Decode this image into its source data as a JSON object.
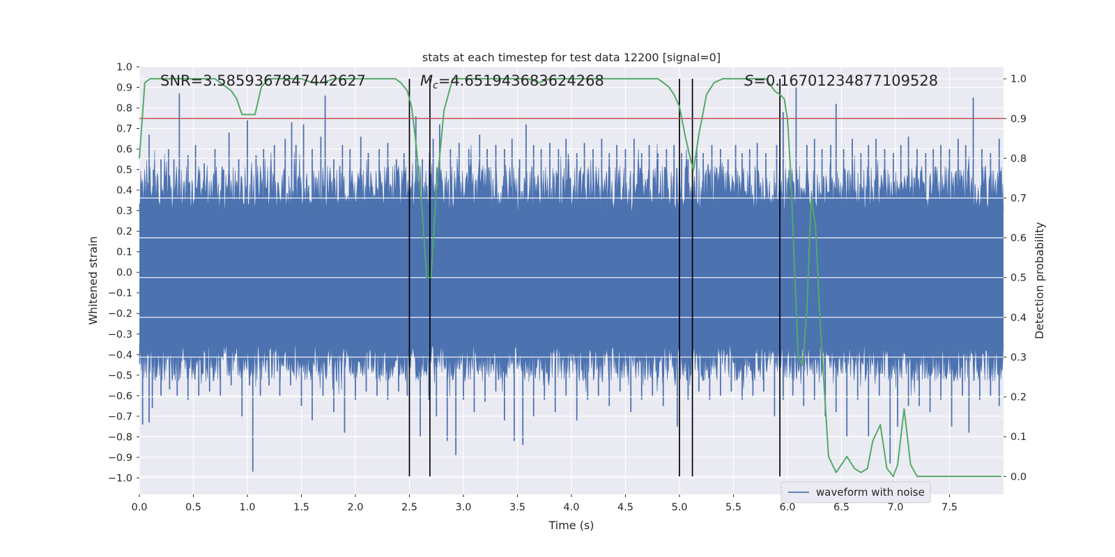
{
  "chart_data": {
    "type": "line",
    "title": "stats at each timestep for test data 12200 [signal=0]",
    "xlabel": "Time (s)",
    "ylabel": "Whitened strain",
    "y2label": "Detection probability",
    "xlim": [
      0.0,
      8.0
    ],
    "ylim": [
      -1.08,
      1.0
    ],
    "y2lim": [
      -0.045,
      1.03
    ],
    "xticks": [
      "0.0",
      "0.5",
      "1.0",
      "1.5",
      "2.0",
      "2.5",
      "3.0",
      "3.5",
      "4.0",
      "4.5",
      "5.0",
      "5.5",
      "6.0",
      "6.5",
      "7.0",
      "7.5"
    ],
    "yticks": [
      "1.0",
      "0.9",
      "0.8",
      "0.7",
      "0.6",
      "0.5",
      "0.4",
      "0.3",
      "0.2",
      "0.1",
      "0.0",
      "−0.1",
      "−0.2",
      "−0.3",
      "−0.4",
      "−0.5",
      "−0.6",
      "−0.7",
      "−0.8",
      "−0.9",
      "−1.0"
    ],
    "y2ticks": [
      "1.0",
      "0.9",
      "0.8",
      "0.7",
      "0.6",
      "0.5",
      "0.4",
      "0.3",
      "0.2",
      "0.1",
      "0.0"
    ],
    "annotations": {
      "snr": "SNR=3.5859367847442627",
      "mc_symbol": "M",
      "mc_subscript": "c",
      "mc_value": "=4.651943683624268",
      "s_symbol": "S",
      "s_value": "=0.16701234877109528"
    },
    "legend": {
      "label": "waveform with noise",
      "position": "lower-right"
    },
    "threshold": {
      "value": 0.9,
      "axis": "y2",
      "color": "#c44e52"
    },
    "event_markers": [
      2.5,
      2.69,
      5.0,
      5.12,
      5.93
    ],
    "waveform": {
      "name": "waveform with noise",
      "color": "#4c72b0",
      "baseline_upper": 0.3,
      "baseline_lower": -0.35,
      "peaks_up": [
        [
          0.02,
          0.35
        ],
        [
          0.05,
          0.45
        ],
        [
          0.09,
          0.67
        ],
        [
          0.13,
          0.5
        ],
        [
          0.2,
          0.55
        ],
        [
          0.27,
          0.6
        ],
        [
          0.32,
          0.55
        ],
        [
          0.37,
          0.87
        ],
        [
          0.45,
          0.57
        ],
        [
          0.52,
          0.62
        ],
        [
          0.6,
          0.53
        ],
        [
          0.7,
          0.6
        ],
        [
          0.78,
          0.5
        ],
        [
          0.83,
          0.68
        ],
        [
          0.92,
          0.55
        ],
        [
          1.0,
          0.74
        ],
        [
          1.08,
          0.57
        ],
        [
          1.15,
          0.6
        ],
        [
          1.25,
          0.62
        ],
        [
          1.35,
          0.65
        ],
        [
          1.41,
          0.73
        ],
        [
          1.45,
          0.62
        ],
        [
          1.52,
          0.72
        ],
        [
          1.6,
          0.6
        ],
        [
          1.68,
          0.66
        ],
        [
          1.72,
          0.86
        ],
        [
          1.8,
          0.55
        ],
        [
          1.88,
          0.62
        ],
        [
          1.95,
          0.6
        ],
        [
          2.05,
          0.66
        ],
        [
          2.12,
          0.58
        ],
        [
          2.22,
          0.6
        ],
        [
          2.3,
          0.63
        ],
        [
          2.38,
          0.55
        ],
        [
          2.45,
          0.58
        ],
        [
          2.56,
          0.76
        ],
        [
          2.62,
          0.55
        ],
        [
          2.72,
          0.65
        ],
        [
          2.78,
          0.72
        ],
        [
          2.88,
          0.6
        ],
        [
          2.96,
          0.63
        ],
        [
          3.05,
          0.6
        ],
        [
          3.15,
          0.67
        ],
        [
          3.22,
          0.6
        ],
        [
          3.3,
          0.62
        ],
        [
          3.38,
          0.6
        ],
        [
          3.45,
          0.65
        ],
        [
          3.52,
          0.55
        ],
        [
          3.58,
          0.72
        ],
        [
          3.65,
          0.62
        ],
        [
          3.72,
          0.6
        ],
        [
          3.8,
          0.63
        ],
        [
          3.88,
          0.6
        ],
        [
          3.95,
          0.65
        ],
        [
          4.05,
          0.58
        ],
        [
          4.12,
          0.63
        ],
        [
          4.2,
          0.6
        ],
        [
          4.28,
          0.65
        ],
        [
          4.35,
          0.58
        ],
        [
          4.42,
          0.62
        ],
        [
          4.5,
          0.6
        ],
        [
          4.58,
          0.65
        ],
        [
          4.65,
          0.58
        ],
        [
          4.72,
          0.62
        ],
        [
          4.8,
          0.58
        ],
        [
          4.88,
          0.6
        ],
        [
          4.95,
          0.62
        ],
        [
          5.02,
          0.58
        ],
        [
          5.08,
          0.55
        ],
        [
          5.16,
          0.6
        ],
        [
          5.22,
          0.58
        ],
        [
          5.3,
          0.62
        ],
        [
          5.38,
          0.6
        ],
        [
          5.45,
          0.55
        ],
        [
          5.52,
          0.62
        ],
        [
          5.58,
          0.58
        ],
        [
          5.65,
          0.6
        ],
        [
          5.72,
          0.63
        ],
        [
          5.8,
          0.58
        ],
        [
          5.9,
          0.62
        ],
        [
          5.96,
          0.78
        ],
        [
          6.08,
          0.9
        ],
        [
          6.18,
          0.62
        ],
        [
          6.25,
          0.65
        ],
        [
          6.32,
          0.6
        ],
        [
          6.4,
          0.62
        ],
        [
          6.45,
          0.82
        ],
        [
          6.52,
          0.6
        ],
        [
          6.6,
          0.65
        ],
        [
          6.68,
          0.58
        ],
        [
          6.75,
          0.62
        ],
        [
          6.82,
          0.65
        ],
        [
          6.9,
          0.6
        ],
        [
          6.98,
          0.58
        ],
        [
          7.05,
          0.62
        ],
        [
          7.12,
          0.66
        ],
        [
          7.2,
          0.6
        ],
        [
          7.28,
          0.58
        ],
        [
          7.35,
          0.6
        ],
        [
          7.42,
          0.62
        ],
        [
          7.5,
          0.6
        ],
        [
          7.58,
          0.65
        ],
        [
          7.65,
          0.62
        ],
        [
          7.72,
          0.85
        ],
        [
          7.8,
          0.6
        ],
        [
          7.88,
          0.58
        ],
        [
          7.96,
          0.65
        ]
      ],
      "peaks_down": [
        [
          0.03,
          -0.74
        ],
        [
          0.09,
          -0.73
        ],
        [
          0.12,
          -0.66
        ],
        [
          0.2,
          -0.6
        ],
        [
          0.28,
          -0.57
        ],
        [
          0.35,
          -0.6
        ],
        [
          0.45,
          -0.62
        ],
        [
          0.55,
          -0.6
        ],
        [
          0.65,
          -0.58
        ],
        [
          0.75,
          -0.6
        ],
        [
          0.85,
          -0.55
        ],
        [
          0.95,
          -0.7
        ],
        [
          1.02,
          -0.55
        ],
        [
          1.05,
          -0.97
        ],
        [
          1.12,
          -0.6
        ],
        [
          1.2,
          -0.55
        ],
        [
          1.3,
          -0.6
        ],
        [
          1.4,
          -0.55
        ],
        [
          1.5,
          -0.65
        ],
        [
          1.6,
          -0.72
        ],
        [
          1.7,
          -0.6
        ],
        [
          1.8,
          -0.68
        ],
        [
          1.9,
          -0.78
        ],
        [
          2.0,
          -0.62
        ],
        [
          2.1,
          -0.58
        ],
        [
          2.2,
          -0.6
        ],
        [
          2.3,
          -0.62
        ],
        [
          2.4,
          -0.58
        ],
        [
          2.48,
          -0.6
        ],
        [
          2.6,
          -0.8
        ],
        [
          2.68,
          -0.62
        ],
        [
          2.75,
          -0.7
        ],
        [
          2.85,
          -0.82
        ],
        [
          2.93,
          -0.89
        ],
        [
          3.0,
          -0.62
        ],
        [
          3.1,
          -0.68
        ],
        [
          3.2,
          -0.63
        ],
        [
          3.3,
          -0.58
        ],
        [
          3.38,
          -0.72
        ],
        [
          3.47,
          -0.82
        ],
        [
          3.55,
          -0.84
        ],
        [
          3.65,
          -0.7
        ],
        [
          3.75,
          -0.62
        ],
        [
          3.85,
          -0.68
        ],
        [
          3.95,
          -0.6
        ],
        [
          4.05,
          -0.72
        ],
        [
          4.15,
          -0.62
        ],
        [
          4.25,
          -0.6
        ],
        [
          4.35,
          -0.65
        ],
        [
          4.45,
          -0.58
        ],
        [
          4.55,
          -0.68
        ],
        [
          4.65,
          -0.62
        ],
        [
          4.75,
          -0.6
        ],
        [
          4.85,
          -0.65
        ],
        [
          4.98,
          -0.75
        ],
        [
          5.08,
          -0.62
        ],
        [
          5.18,
          -0.58
        ],
        [
          5.28,
          -0.62
        ],
        [
          5.38,
          -0.6
        ],
        [
          5.48,
          -0.58
        ],
        [
          5.58,
          -0.62
        ],
        [
          5.68,
          -0.6
        ],
        [
          5.78,
          -0.58
        ],
        [
          5.88,
          -0.7
        ],
        [
          5.96,
          -0.62
        ],
        [
          6.05,
          -0.6
        ],
        [
          6.15,
          -0.65
        ],
        [
          6.25,
          -0.62
        ],
        [
          6.35,
          -0.7
        ],
        [
          6.45,
          -0.68
        ],
        [
          6.55,
          -0.8
        ],
        [
          6.65,
          -0.62
        ],
        [
          6.75,
          -0.8
        ],
        [
          6.85,
          -0.6
        ],
        [
          6.95,
          -0.93
        ],
        [
          7.02,
          -0.75
        ],
        [
          7.12,
          -0.65
        ],
        [
          7.22,
          -0.65
        ],
        [
          7.32,
          -0.68
        ],
        [
          7.42,
          -0.62
        ],
        [
          7.52,
          -0.75
        ],
        [
          7.62,
          -0.6
        ],
        [
          7.68,
          -0.78
        ],
        [
          7.78,
          -0.62
        ],
        [
          7.88,
          -0.6
        ],
        [
          7.96,
          -0.65
        ]
      ]
    },
    "probability": {
      "name": "Detection probability",
      "color": "#55a868",
      "x": [
        0.0,
        0.05,
        0.1,
        0.15,
        0.2,
        0.3,
        0.4,
        0.5,
        0.6,
        0.7,
        0.75,
        0.8,
        0.85,
        0.9,
        0.95,
        1.0,
        1.03,
        1.07,
        1.13,
        1.2,
        1.3,
        1.4,
        1.5,
        1.6,
        1.7,
        1.8,
        1.9,
        2.0,
        2.1,
        2.2,
        2.3,
        2.37,
        2.42,
        2.48,
        2.52,
        2.56,
        2.62,
        2.66,
        2.7,
        2.75,
        2.82,
        2.9,
        3.0,
        3.1,
        3.2,
        3.3,
        3.4,
        3.5,
        3.6,
        3.7,
        3.8,
        3.9,
        4.0,
        4.1,
        4.2,
        4.3,
        4.4,
        4.5,
        4.6,
        4.7,
        4.8,
        4.85,
        4.9,
        4.95,
        5.0,
        5.05,
        5.1,
        5.13,
        5.18,
        5.25,
        5.32,
        5.4,
        5.5,
        5.6,
        5.7,
        5.8,
        5.88,
        5.93,
        5.97,
        6.0,
        6.03,
        6.06,
        6.1,
        6.14,
        6.18,
        6.22,
        6.26,
        6.3,
        6.38,
        6.45,
        6.5,
        6.55,
        6.62,
        6.68,
        6.74,
        6.79,
        6.86,
        6.92,
        6.98,
        7.02,
        7.08,
        7.14,
        7.2,
        7.3,
        7.4,
        7.5,
        7.6,
        7.7,
        7.8,
        7.9,
        7.98
      ],
      "y": [
        0.8,
        0.99,
        1.0,
        1.0,
        1.0,
        1.0,
        1.0,
        1.0,
        1.0,
        1.0,
        0.99,
        0.98,
        0.97,
        0.95,
        0.91,
        0.91,
        0.91,
        0.91,
        0.98,
        1.0,
        1.0,
        1.0,
        1.0,
        0.99,
        0.99,
        1.0,
        1.0,
        1.0,
        1.0,
        1.0,
        1.0,
        1.0,
        0.99,
        0.97,
        0.93,
        0.84,
        0.66,
        0.5,
        0.5,
        0.72,
        0.92,
        1.0,
        1.0,
        1.0,
        1.0,
        1.0,
        1.0,
        1.0,
        1.0,
        0.99,
        1.0,
        1.0,
        1.0,
        1.0,
        1.0,
        1.0,
        1.0,
        1.0,
        1.0,
        1.0,
        1.0,
        0.99,
        0.98,
        0.96,
        0.93,
        0.86,
        0.8,
        0.77,
        0.86,
        0.96,
        0.99,
        1.0,
        1.0,
        1.0,
        1.0,
        1.0,
        0.97,
        0.96,
        0.95,
        0.9,
        0.76,
        0.56,
        0.3,
        0.28,
        0.42,
        0.7,
        0.63,
        0.4,
        0.05,
        0.01,
        0.03,
        0.05,
        0.02,
        0.01,
        0.02,
        0.09,
        0.13,
        0.02,
        0.0,
        0.03,
        0.17,
        0.03,
        0.0,
        0.0,
        0.0,
        0.0,
        0.0,
        0.0,
        0.0,
        0.0,
        0.0
      ]
    }
  }
}
